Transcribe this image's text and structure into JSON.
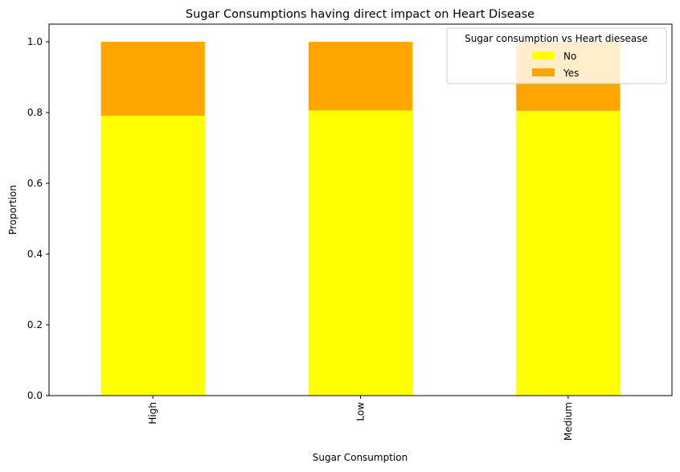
{
  "chart_data": {
    "type": "bar",
    "stacked": true,
    "title": "Sugar Consumptions having direct impact on Heart Disease",
    "xlabel": "Sugar Consumption",
    "ylabel": "Proportion",
    "categories": [
      "High",
      "Low",
      "Medium"
    ],
    "ylim": [
      0,
      1.05
    ],
    "yticks": [
      "0.0",
      "0.2",
      "0.4",
      "0.6",
      "0.8",
      "1.0"
    ],
    "grid": false,
    "legend": {
      "title": "Sugar consumption vs Heart diesease",
      "placement": "top-right"
    },
    "series": [
      {
        "name": "No",
        "color": "#ffff00",
        "values": [
          0.791,
          0.806,
          0.805
        ]
      },
      {
        "name": "Yes",
        "color": "#ffa500",
        "values": [
          0.209,
          0.194,
          0.195
        ]
      }
    ]
  }
}
